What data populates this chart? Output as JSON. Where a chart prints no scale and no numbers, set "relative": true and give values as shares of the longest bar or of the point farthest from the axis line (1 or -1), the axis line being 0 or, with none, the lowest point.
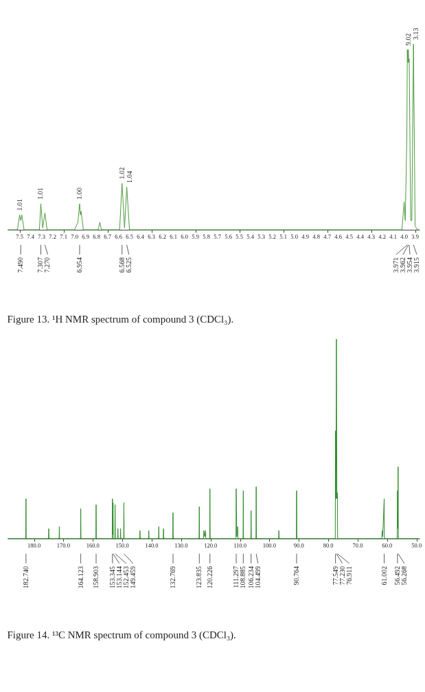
{
  "chart_data": [
    {
      "type": "line",
      "title": "Figure 13. ¹H NMR spectrum of compound 3 (CDCl₃).",
      "relative": true,
      "xlim": [
        7.61,
        3.86
      ],
      "xticks": [
        7.5,
        7.4,
        7.3,
        7.2,
        7.1,
        {
          "value": 7.0,
          "label": "7.0"
        },
        6.9,
        6.8,
        6.7,
        6.6,
        6.5,
        6.4,
        6.3,
        6.2,
        6.1,
        {
          "value": 6.0,
          "label": "6.0"
        },
        5.9,
        5.8,
        5.7,
        5.6,
        5.5,
        5.4,
        5.3,
        5.2,
        5.1,
        {
          "value": 5.0,
          "label": "5.0"
        },
        4.9,
        4.8,
        4.7,
        4.6,
        4.5,
        4.4,
        4.3,
        4.2,
        4.1,
        {
          "value": 4.0,
          "label": "4.0"
        },
        3.9
      ],
      "series": [
        {
          "color": "#4c9a3c",
          "x": [
            7.61,
            7.52,
            7.5,
            7.49,
            7.48,
            7.46,
            7.32,
            7.307,
            7.29,
            7.27,
            7.25,
            7.0,
            6.97,
            6.954,
            6.947,
            6.94,
            6.92,
            6.785,
            6.77,
            6.755,
            6.59,
            6.568,
            6.545,
            6.525,
            6.5,
            4.02,
            4.0,
            3.99,
            3.985,
            3.975,
            3.971,
            3.966,
            3.962,
            3.958,
            3.954,
            3.94,
            3.93,
            3.915,
            3.9,
            3.88,
            3.86
          ],
          "values": [
            0,
            0,
            0.08,
            0.05,
            0.08,
            0,
            0,
            0.14,
            0.01,
            0.09,
            0,
            0,
            0.04,
            0.14,
            0.08,
            0.1,
            0,
            0,
            0.04,
            0,
            0,
            0.25,
            0.01,
            0.23,
            0,
            0,
            0.15,
            0.05,
            0.2,
            0.5,
            0.97,
            0.9,
            0.97,
            0.9,
            0.92,
            0.05,
            0.05,
            1,
            0.02,
            0,
            0
          ]
        }
      ],
      "annotations": [
        {
          "text": "1.01",
          "x": 7.5,
          "y": 0.08
        },
        {
          "text": "1.01",
          "x": 7.307,
          "y": 0.14
        },
        {
          "text": "1.00",
          "x": 6.954,
          "y": 0.14
        },
        {
          "text": "1.02",
          "x": 6.568,
          "y": 0.25
        },
        {
          "text": "1.04",
          "x": 6.525,
          "y": 0.23
        },
        {
          "text": "9.02",
          "x": 3.962,
          "y": 0.97
        },
        {
          "text": "3.13",
          "x": 3.915,
          "y": 1
        },
        {
          "text": "7.490",
          "x": 7.49
        },
        {
          "text": "7.307",
          "x": 7.307
        },
        {
          "text": "7.270",
          "x": 7.27
        },
        {
          "text": "6.954",
          "x": 6.954
        },
        {
          "text": "6.568",
          "x": 6.568
        },
        {
          "text": "6.525",
          "x": 6.525
        },
        {
          "text": "3.971",
          "x": 3.971
        },
        {
          "text": "3.962",
          "x": 3.962
        },
        {
          "text": "3.954",
          "x": 3.954
        },
        {
          "text": "3.915",
          "x": 3.915
        }
      ]
    },
    {
      "type": "line",
      "title": "Figure 14. ¹³C NMR spectrum of compound 3 (CDCl₃).",
      "relative": true,
      "xlim": [
        189,
        49
      ],
      "xticks": [
        {
          "value": 180,
          "label": "180.0"
        },
        {
          "value": 170,
          "label": "170.0"
        },
        {
          "value": 160,
          "label": "160.0"
        },
        {
          "value": 150,
          "label": "150.0"
        },
        {
          "value": 140,
          "label": "140.0"
        },
        {
          "value": 130,
          "label": "130.0"
        },
        {
          "value": 120,
          "label": "120.0"
        },
        {
          "value": 110,
          "label": "110.0"
        },
        {
          "value": 100,
          "label": "100.0"
        },
        {
          "value": 90,
          "label": "90.0"
        },
        {
          "value": 80,
          "label": "80.0"
        },
        {
          "value": 70,
          "label": "70.0"
        },
        {
          "value": 60,
          "label": "60.0"
        },
        {
          "value": 50,
          "label": "50.0"
        }
      ],
      "series": [
        {
          "color": "#2f8a2a",
          "x": [
            189,
            182.82,
            182.74,
            182.66,
            175.08,
            175.0,
            174.92,
            171.48,
            171.4,
            171.32,
            164.203,
            164.123,
            164.043,
            158.983,
            158.903,
            158.823,
            153.425,
            153.345,
            153.245,
            153.144,
            153.064,
            152.533,
            152.453,
            152.373,
            151.58,
            151.5,
            151.42,
            150.68,
            150.6,
            150.52,
            149.539,
            149.459,
            149.379,
            144.08,
            144,
            143.92,
            141.08,
            141,
            140.92,
            137.68,
            137.6,
            137.52,
            136.08,
            136,
            135.92,
            132.849,
            132.769,
            132.689,
            123.915,
            123.835,
            123.755,
            122.38,
            122.3,
            122.0,
            121.7,
            121.62,
            120.306,
            120.226,
            120.146,
            111.377,
            111.297,
            111.1,
            110.8,
            110.72,
            108.965,
            108.885,
            108.805,
            106.314,
            106.234,
            106.154,
            104.579,
            104.499,
            104.419,
            96.88,
            96.8,
            96.72,
            90.844,
            90.764,
            90.684,
            77.629,
            77.549,
            77.39,
            77.23,
            77.07,
            76.911,
            76.831,
            61.78,
            61.7,
            61.5,
            61.002,
            60.922,
            56.572,
            56.492,
            56.38,
            56.268,
            56.188,
            49
          ],
          "values": [
            0,
            0,
            0.2,
            0,
            0,
            0.05,
            0,
            0,
            0.06,
            0,
            0,
            0.15,
            0,
            0,
            0.17,
            0,
            0,
            0.2,
            0.02,
            0.18,
            0,
            0,
            0.17,
            0,
            0,
            0.05,
            0,
            0,
            0.05,
            0,
            0,
            0.18,
            0,
            0,
            0.04,
            0,
            0,
            0.04,
            0,
            0,
            0.06,
            0,
            0,
            0.05,
            0,
            0,
            0.13,
            0,
            0,
            0.16,
            0,
            0,
            0.04,
            0.01,
            0.04,
            0,
            0,
            0.25,
            0,
            0,
            0.25,
            0.01,
            0.06,
            0,
            0,
            0.24,
            0,
            0,
            0.14,
            0,
            0,
            0.26,
            0,
            0,
            0.04,
            0,
            0,
            0.24,
            0,
            0,
            0.54,
            0.2,
            1,
            0.2,
            0.23,
            0,
            0,
            0.04,
            0.01,
            0.2,
            0,
            0,
            0.24,
            0.05,
            0.36,
            0,
            0
          ]
        }
      ],
      "annotations": [
        {
          "text": "182.740",
          "x": 182.74
        },
        {
          "text": "164.123",
          "x": 164.123
        },
        {
          "text": "158.903",
          "x": 158.903
        },
        {
          "text": "153.345",
          "x": 153.345
        },
        {
          "text": "153.144",
          "x": 153.144
        },
        {
          "text": "152.453",
          "x": 152.453
        },
        {
          "text": "149.459",
          "x": 149.459
        },
        {
          "text": "132.769",
          "x": 132.769
        },
        {
          "text": "123.835",
          "x": 123.835
        },
        {
          "text": "120.226",
          "x": 120.226
        },
        {
          "text": "111.297",
          "x": 111.297
        },
        {
          "text": "108.885",
          "x": 108.885
        },
        {
          "text": "106.234",
          "x": 106.234
        },
        {
          "text": "104.499",
          "x": 104.499
        },
        {
          "text": "90.764",
          "x": 90.764
        },
        {
          "text": "77.549",
          "x": 77.549
        },
        {
          "text": "77.230",
          "x": 77.23
        },
        {
          "text": "76.911",
          "x": 76.911
        },
        {
          "text": "61.002",
          "x": 61.002
        },
        {
          "text": "56.492",
          "x": 56.492
        },
        {
          "text": "56.268",
          "x": 56.268
        }
      ]
    }
  ]
}
